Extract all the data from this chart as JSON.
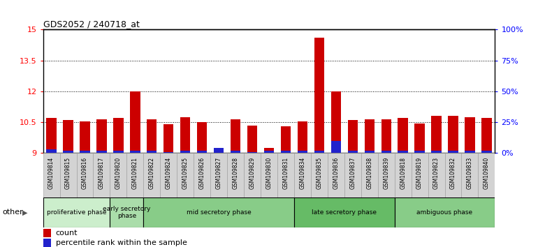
{
  "title": "GDS2052 / 240718_at",
  "samples": [
    "GSM109814",
    "GSM109815",
    "GSM109816",
    "GSM109817",
    "GSM109820",
    "GSM109821",
    "GSM109822",
    "GSM109824",
    "GSM109825",
    "GSM109826",
    "GSM109827",
    "GSM109828",
    "GSM109829",
    "GSM109830",
    "GSM109831",
    "GSM109834",
    "GSM109835",
    "GSM109836",
    "GSM109837",
    "GSM109838",
    "GSM109839",
    "GSM109818",
    "GSM109819",
    "GSM109823",
    "GSM109832",
    "GSM109833",
    "GSM109840"
  ],
  "count_values": [
    10.7,
    10.6,
    10.55,
    10.65,
    10.7,
    12.0,
    10.65,
    10.4,
    10.75,
    10.5,
    9.15,
    10.65,
    10.35,
    9.25,
    10.3,
    10.55,
    14.6,
    12.0,
    10.6,
    10.65,
    10.65,
    10.7,
    10.45,
    10.8,
    10.8,
    10.75,
    10.7
  ],
  "percentile_values": [
    3,
    2,
    2,
    2,
    2,
    2,
    2,
    1,
    2,
    2,
    4,
    2,
    1,
    2,
    2,
    2,
    2,
    10,
    2,
    2,
    2,
    2,
    2,
    2,
    2,
    2,
    2
  ],
  "phases": [
    {
      "name": "proliferative phase",
      "start": 0,
      "end": 4
    },
    {
      "name": "early secretory\nphase",
      "start": 4,
      "end": 6
    },
    {
      "name": "mid secretory phase",
      "start": 6,
      "end": 15
    },
    {
      "name": "late secretory phase",
      "start": 15,
      "end": 21
    },
    {
      "name": "ambiguous phase",
      "start": 21,
      "end": 27
    }
  ],
  "phase_colors": [
    "#cceecc",
    "#aaddaa",
    "#88cc88",
    "#66bb66",
    "#88cc88"
  ],
  "ylim_left": [
    9,
    15
  ],
  "ylim_right": [
    0,
    100
  ],
  "yticks_left": [
    9,
    10.5,
    12,
    13.5,
    15
  ],
  "yticks_right": [
    0,
    25,
    50,
    75,
    100
  ],
  "ytick_labels_right": [
    "0%",
    "25%",
    "50%",
    "75%",
    "100%"
  ],
  "bar_color_red": "#cc0000",
  "bar_color_blue": "#2222cc",
  "bg_color": "#ffffff",
  "tick_bg_color": "#d3d3d3",
  "legend_count": "count",
  "legend_percentile": "percentile rank within the sample"
}
